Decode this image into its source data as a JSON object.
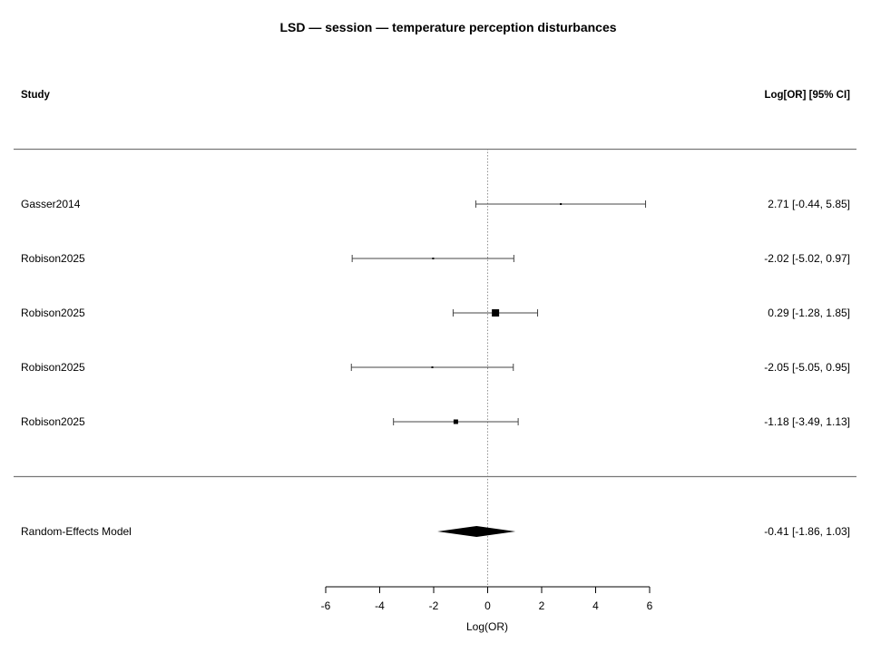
{
  "chart_data": {
    "type": "forest",
    "title": "LSD — session — temperature perception disturbances",
    "column_headers": {
      "study": "Study",
      "estimate": "Log[OR] [95% CI]"
    },
    "xlabel": "Log(OR)",
    "xlim": [
      -6,
      6
    ],
    "xticks": [
      -6,
      -4,
      -2,
      0,
      2,
      4,
      6
    ],
    "xtick_labels": [
      "-6",
      "-4",
      "-2",
      "0",
      "2",
      "4",
      "6"
    ],
    "reference_line": 0,
    "studies": [
      {
        "label": "Gasser2014",
        "estimate": 2.71,
        "lower": -0.44,
        "upper": 5.85,
        "text": "2.71 [-0.44, 5.85]",
        "weight": 2
      },
      {
        "label": "Robison2025",
        "estimate": -2.02,
        "lower": -5.02,
        "upper": 0.97,
        "text": "-2.02 [-5.02, 0.97]",
        "weight": 2
      },
      {
        "label": "Robison2025",
        "estimate": 0.29,
        "lower": -1.28,
        "upper": 1.85,
        "text": "0.29 [-1.28, 1.85]",
        "weight": 8
      },
      {
        "label": "Robison2025",
        "estimate": -2.05,
        "lower": -5.05,
        "upper": 0.95,
        "text": "-2.05 [-5.05, 0.95]",
        "weight": 2
      },
      {
        "label": "Robison2025",
        "estimate": -1.18,
        "lower": -3.49,
        "upper": 1.13,
        "text": "-1.18 [-3.49, 1.13]",
        "weight": 5
      }
    ],
    "summary": {
      "label": "Random-Effects Model",
      "estimate": -0.41,
      "lower": -1.86,
      "upper": 1.03,
      "text": "-0.41 [-1.86, 1.03]"
    }
  }
}
